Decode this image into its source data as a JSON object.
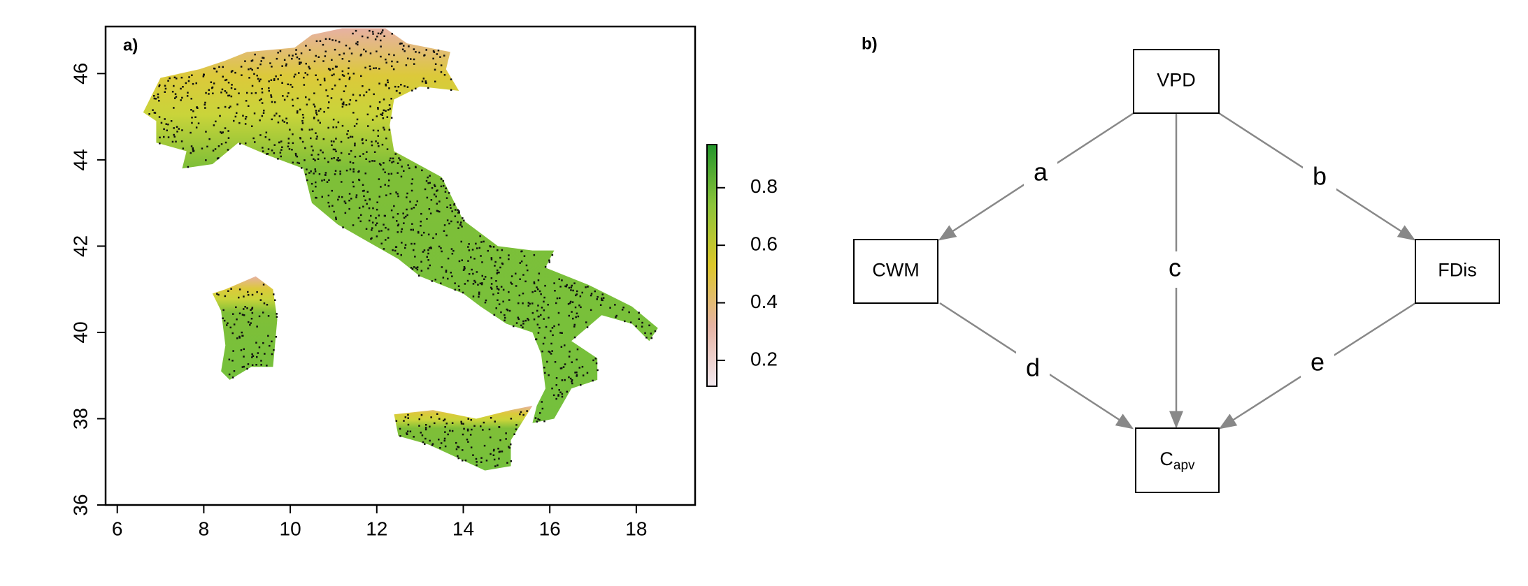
{
  "map": {
    "panel_label": "a)",
    "xlim": [
      5.73,
      19.36
    ],
    "ylim": [
      36,
      47.09
    ],
    "xticks": [
      6,
      8,
      10,
      12,
      14,
      16,
      18
    ],
    "yticks": [
      36,
      38,
      40,
      42,
      44,
      46
    ],
    "colorbar": {
      "lim": [
        0.11,
        0.95
      ],
      "ticks": [
        0.2,
        0.4,
        0.6,
        0.8
      ],
      "colors": [
        "#f3e9ef",
        "#e6b3a3",
        "#dcc72a",
        "#8cc43a",
        "#23952b"
      ]
    }
  },
  "diagram": {
    "panel_label": "b)",
    "nodes": [
      {
        "label": "VPD"
      },
      {
        "label": "CWM"
      },
      {
        "label": "FDis"
      },
      {
        "label": "C",
        "subscript": "apv"
      }
    ],
    "edges": [
      {
        "label": "a"
      },
      {
        "label": "b"
      },
      {
        "label": "c"
      },
      {
        "label": "d"
      },
      {
        "label": "e"
      }
    ]
  }
}
